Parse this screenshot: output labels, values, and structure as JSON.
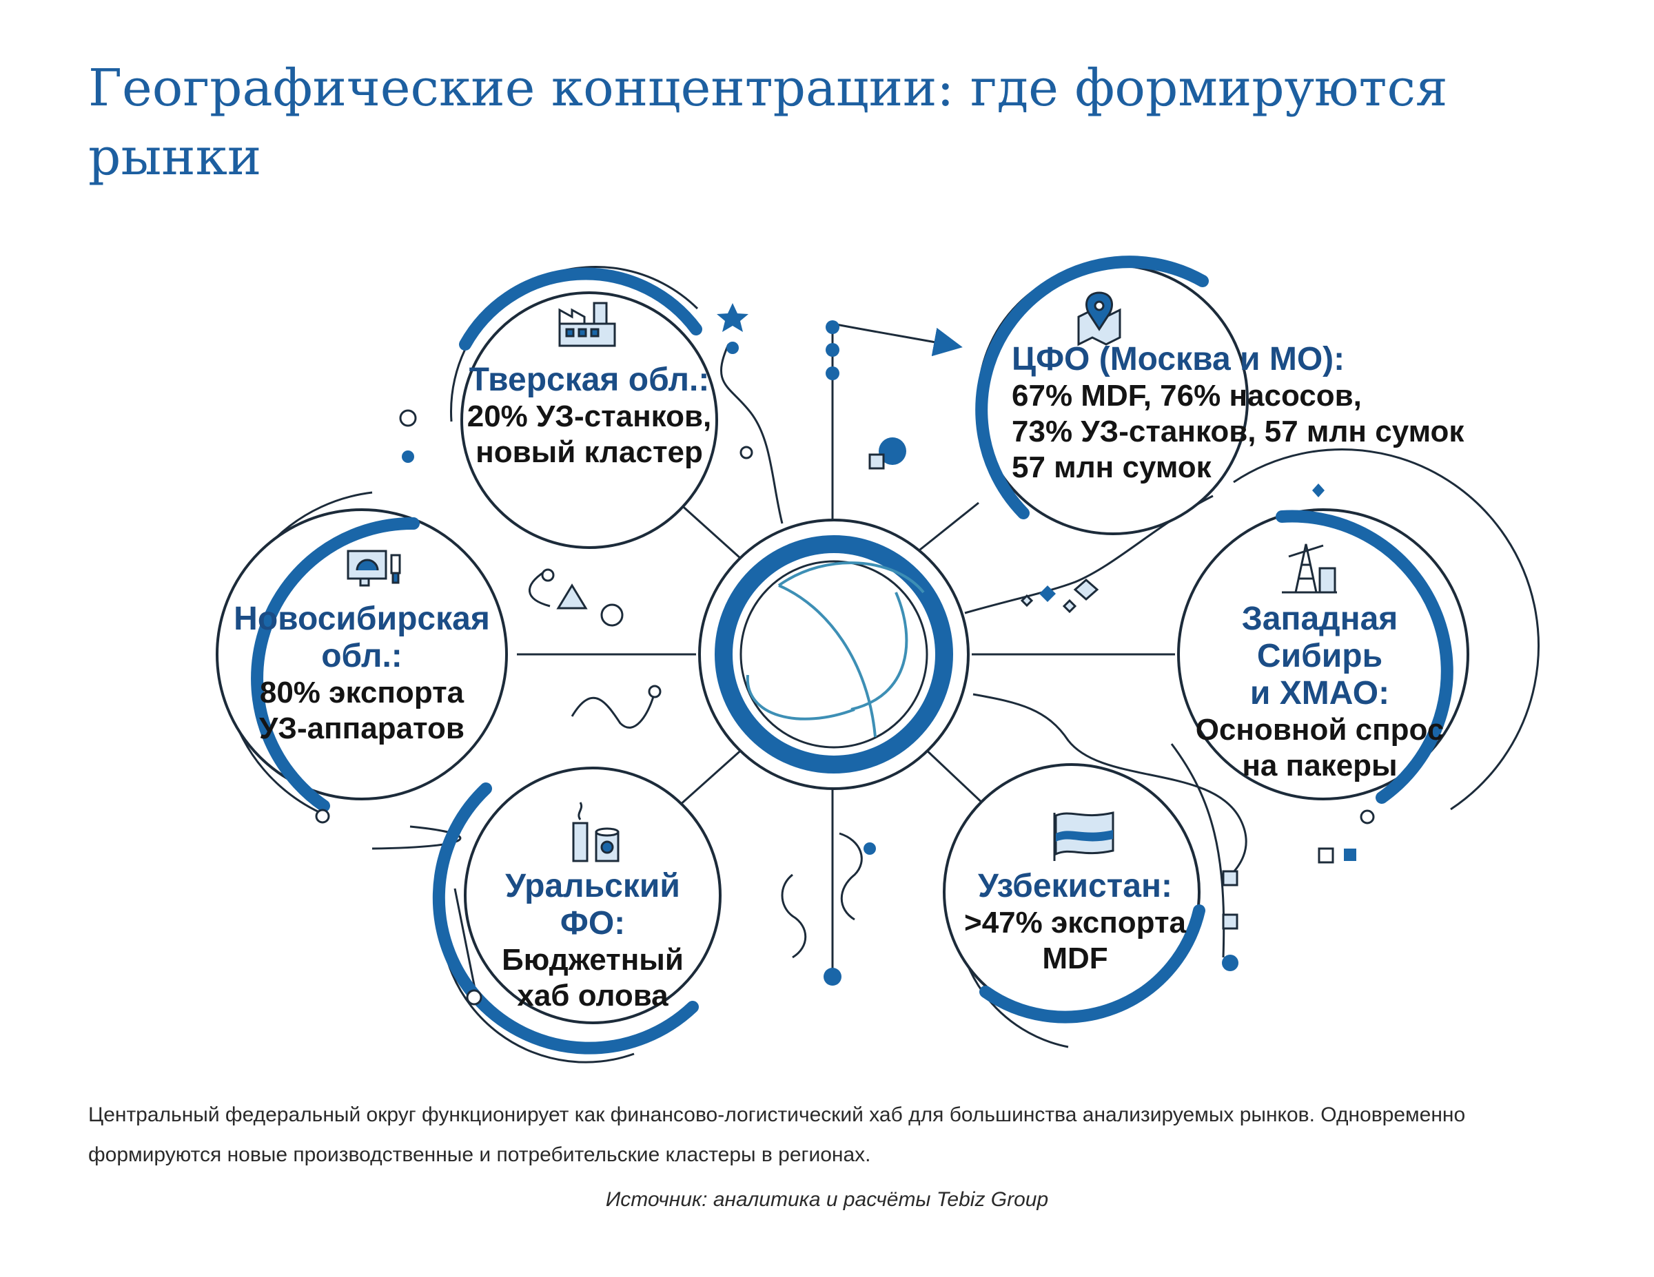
{
  "title": "Географические концентрации: где формируются рынки",
  "nodes": {
    "tver": {
      "title": "Тверская обл.:",
      "body": "20% УЗ-станков,\nновый кластер",
      "icon": "factory-icon"
    },
    "cfo": {
      "title": "ЦФО (Москва и МО):",
      "body": "67% MDF, 76% насосов,\n73% УЗ-станков, 57 млн сумок\n57 млн сумок",
      "icon": "map-pin-icon"
    },
    "novosibirsk": {
      "title": "Новосибирская\nобл.:",
      "body": "80% экспорта\nУЗ-аппаратов",
      "icon": "ultrasound-device-icon"
    },
    "west_siberia": {
      "title": "Западная Сибирь\nи ХМАО:",
      "body": "Основной спрос\nна пакеры",
      "icon": "oil-derrick-icon"
    },
    "ural": {
      "title": "Уральский ФО:",
      "body": "Бюджетный\nхаб олова",
      "icon": "tin-can-factory-icon"
    },
    "uzbekistan": {
      "title": "Узбекистан:",
      "body": ">47% экспорта\nMDF",
      "icon": "flag-icon"
    }
  },
  "description": "Центральный федеральный округ функционирует как финансово-логистический хаб для большинства анализируемых рынков. Одновременно формируются новые производственные и потребительские кластеры в регионах.",
  "source": "Источник: аналитика и расчёты Tebiz Group",
  "colors": {
    "title": "#1d5fa0",
    "accent": "#1a66a8",
    "line": "#1c2b3a",
    "node_title": "#1b4d86",
    "light_fill": "#d6e6f4",
    "hub_arc": "#3d8fb5"
  }
}
